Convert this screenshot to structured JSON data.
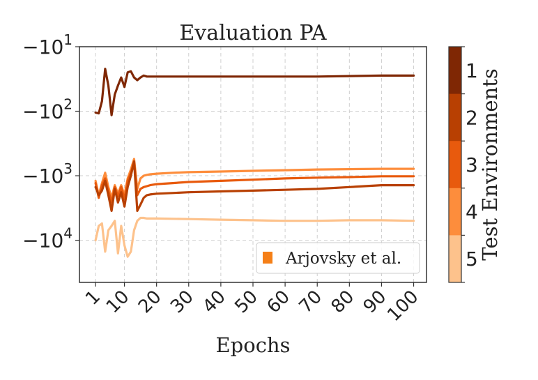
{
  "chart_data": {
    "type": "line",
    "title": "Evaluation PA",
    "xlabel": "Epochs",
    "ylabel": "",
    "y_scale": "symlog-negative",
    "xlim": [
      -4,
      104
    ],
    "ylim": [
      -10,
      -45000
    ],
    "x_ticks": [
      1,
      10,
      20,
      30,
      40,
      50,
      60,
      70,
      80,
      90,
      100
    ],
    "x_tick_labels": [
      "1",
      "10",
      "20",
      "30",
      "40",
      "50",
      "60",
      "70",
      "80",
      "90",
      "100"
    ],
    "y_ticks": [
      -10,
      -100,
      -1000,
      -10000
    ],
    "y_tick_labels": [
      {
        "base": "−10",
        "exp": "1"
      },
      {
        "base": "−10",
        "exp": "2"
      },
      {
        "base": "−10",
        "exp": "3"
      },
      {
        "base": "−10",
        "exp": "4"
      }
    ],
    "grid": true,
    "legend": {
      "placement": "lower-right",
      "label": "Arjovsky et al.",
      "color": "#f57f17"
    },
    "colorbar": {
      "label": "Test Environments",
      "ticks": [
        "1",
        "2",
        "3",
        "4",
        "5"
      ],
      "colors": [
        "#7f2704",
        "#b84002",
        "#e85a0d",
        "#fd8d3c",
        "#fdc28c"
      ]
    },
    "series": [
      {
        "env": "1",
        "color": "#7f2704",
        "x": [
          1,
          2,
          3,
          4,
          5,
          6,
          7,
          8,
          9,
          10,
          11,
          12,
          13,
          14,
          15,
          16,
          17,
          20,
          30,
          40,
          50,
          60,
          70,
          80,
          90,
          100
        ],
        "y": [
          -105,
          -108,
          -70,
          -22,
          -40,
          -115,
          -55,
          -40,
          -30,
          -42,
          -25,
          -24,
          -30,
          -33,
          -30,
          -28,
          -29,
          -29,
          -29,
          -29,
          -29,
          -29,
          -29,
          -28.5,
          -28,
          -28
        ]
      },
      {
        "env": "2",
        "color": "#b84002",
        "x": [
          1,
          2,
          3,
          4,
          5,
          6,
          7,
          8,
          9,
          10,
          11,
          12,
          13,
          14,
          15,
          16,
          17,
          18,
          20,
          25,
          30,
          40,
          50,
          60,
          70,
          80,
          90,
          100
        ],
        "y": [
          -1500,
          -2000,
          -1700,
          -1200,
          -2000,
          -3500,
          -1600,
          -2600,
          -1800,
          -3000,
          -1500,
          -1000,
          -600,
          -3500,
          -2800,
          -2200,
          -2000,
          -1950,
          -1900,
          -1850,
          -1800,
          -1750,
          -1700,
          -1650,
          -1600,
          -1500,
          -1400,
          -1400
        ]
      },
      {
        "env": "3",
        "color": "#e85a0d",
        "x": [
          1,
          2,
          3,
          4,
          5,
          6,
          7,
          8,
          9,
          10,
          11,
          12,
          13,
          14,
          15,
          16,
          17,
          18,
          20,
          25,
          30,
          40,
          50,
          60,
          70,
          80,
          90,
          100
        ],
        "y": [
          -1300,
          -2200,
          -1400,
          -1100,
          -1700,
          -2600,
          -1500,
          -2100,
          -1500,
          -2300,
          -1200,
          -900,
          -600,
          -2000,
          -1600,
          -1500,
          -1450,
          -1400,
          -1350,
          -1300,
          -1250,
          -1200,
          -1150,
          -1100,
          -1070,
          -1050,
          -1020,
          -1020
        ]
      },
      {
        "env": "4",
        "color": "#fd8d3c",
        "x": [
          1,
          2,
          3,
          4,
          5,
          6,
          7,
          8,
          9,
          10,
          11,
          12,
          13,
          14,
          15,
          16,
          17,
          18,
          20,
          25,
          30,
          40,
          50,
          60,
          70,
          80,
          90,
          100
        ],
        "y": [
          -1200,
          -2000,
          -1300,
          -900,
          -1500,
          -2200,
          -1400,
          -1900,
          -1400,
          -2000,
          -1100,
          -800,
          -550,
          -1600,
          -1100,
          -1000,
          -970,
          -950,
          -930,
          -900,
          -880,
          -860,
          -840,
          -820,
          -800,
          -790,
          -780,
          -780
        ]
      },
      {
        "env": "5",
        "color": "#fdc28c",
        "x": [
          1,
          2,
          3,
          4,
          5,
          6,
          7,
          8,
          9,
          10,
          11,
          12,
          13,
          14,
          15,
          16,
          17,
          20,
          30,
          40,
          50,
          60,
          70,
          80,
          90,
          100
        ],
        "y": [
          -10000,
          -6000,
          -5500,
          -15000,
          -7000,
          -6000,
          -5000,
          -16000,
          -6000,
          -12000,
          -18000,
          -15000,
          -7000,
          -5000,
          -4500,
          -4500,
          -4600,
          -4600,
          -4700,
          -4800,
          -4900,
          -5000,
          -5000,
          -4900,
          -4900,
          -5000
        ]
      }
    ]
  }
}
